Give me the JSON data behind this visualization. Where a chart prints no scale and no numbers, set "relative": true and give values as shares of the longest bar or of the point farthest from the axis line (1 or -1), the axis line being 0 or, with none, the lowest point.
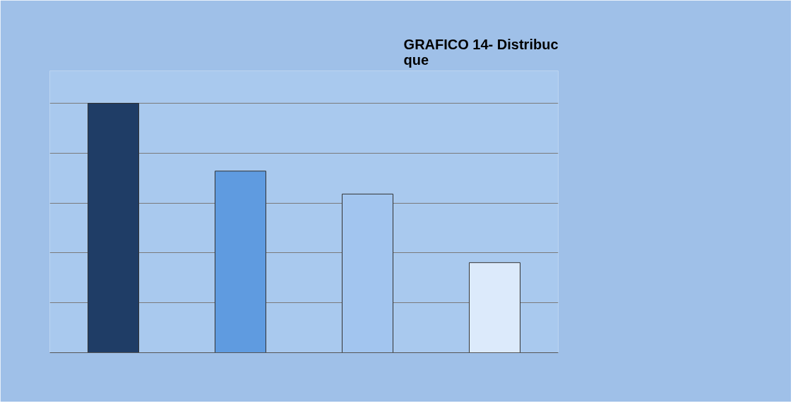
{
  "chart_data": {
    "type": "bar",
    "title": "GRAFICO 14- Distribuc\nque",
    "relative": true,
    "categories": [
      null,
      null,
      null,
      null
    ],
    "values": [
      1,
      0.728,
      0.636,
      0.361
    ],
    "colors": [
      "#1f3d66",
      "#5f9be0",
      "#a2c5ef",
      "#dceafb"
    ],
    "grid": "y"
  }
}
